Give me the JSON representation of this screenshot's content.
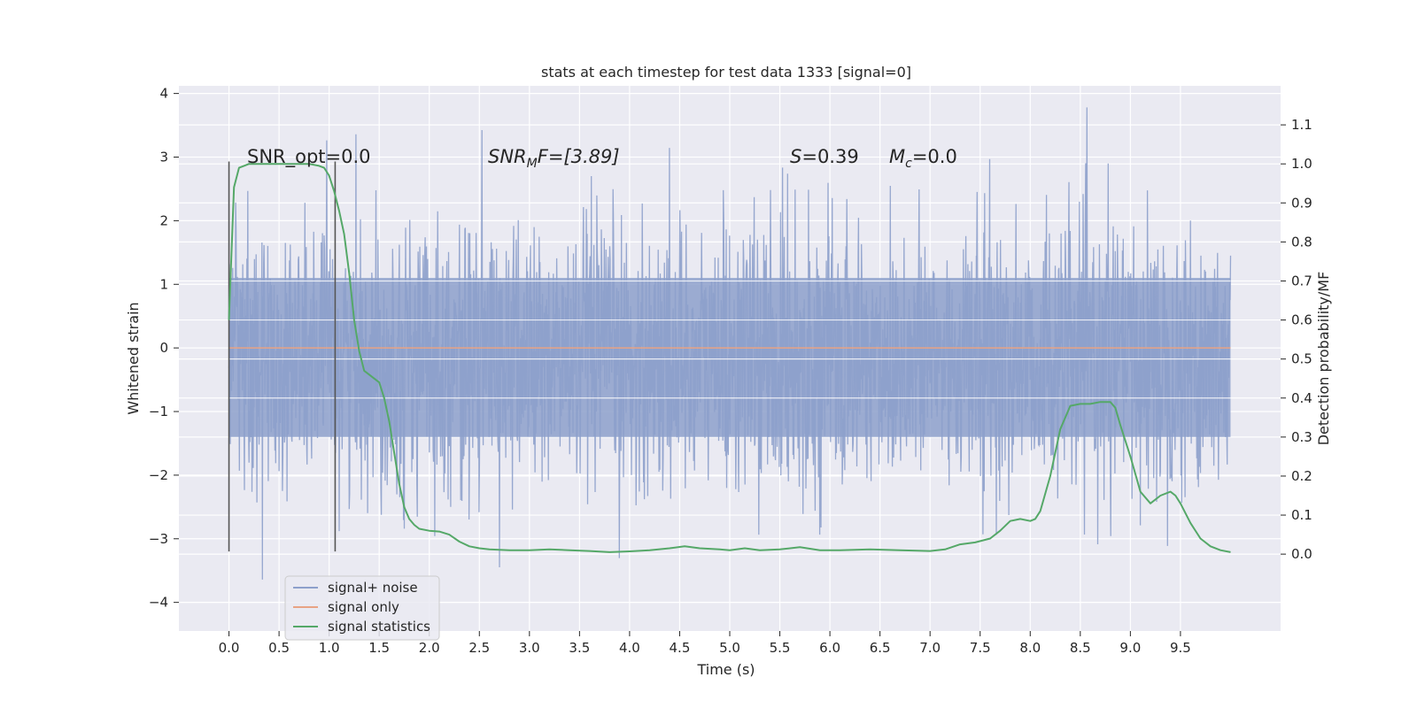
{
  "chart_data": {
    "type": "line",
    "title": "stats at each timestep for test data 1333 [signal=0]",
    "xlabel": "Time (s)",
    "ylabel": "Whitened strain",
    "y2label": "Detection probability/MF",
    "xlim": [
      -0.5,
      10.5
    ],
    "ylim": [
      -4.45,
      4.12
    ],
    "y2lim": [
      -0.197,
      1.2
    ],
    "xticks": [
      0.0,
      0.5,
      1.0,
      1.5,
      2.0,
      2.5,
      3.0,
      3.5,
      4.0,
      4.5,
      5.0,
      5.5,
      6.0,
      6.5,
      7.0,
      7.5,
      8.0,
      8.5,
      9.0,
      9.5
    ],
    "xtick_labels": [
      "0.0",
      "0.5",
      "1.0",
      "1.5",
      "2.0",
      "2.5",
      "3.0",
      "3.5",
      "4.0",
      "4.5",
      "5.0",
      "5.5",
      "6.0",
      "6.5",
      "7.0",
      "7.5",
      "8.0",
      "8.5",
      "9.0",
      "9.5"
    ],
    "yticks": [
      -4,
      -3,
      -2,
      -1,
      0,
      1,
      2,
      3,
      4
    ],
    "ytick_labels": [
      "−4",
      "−3",
      "−2",
      "−1",
      "0",
      "1",
      "2",
      "3",
      "4"
    ],
    "y2ticks": [
      0.0,
      0.1,
      0.2,
      0.3,
      0.4,
      0.5,
      0.6,
      0.7,
      0.8,
      0.9,
      1.0,
      1.1
    ],
    "y2tick_labels": [
      "0.0",
      "0.1",
      "0.2",
      "0.3",
      "0.4",
      "0.5",
      "0.6",
      "0.7",
      "0.8",
      "0.9",
      "1.0",
      "1.1"
    ],
    "grid": true,
    "legend_position": "lower-left",
    "annotations": {
      "snr_opt": "SNR_opt=0.0",
      "snr_mf_main": "SNR",
      "snr_mf_sub": "M",
      "snr_mf_rest": "F=[3.89]",
      "s_main": "S",
      "s_rest": "=0.39",
      "mc_main": "M",
      "mc_sub": "c",
      "mc_rest": "=0.0"
    },
    "vertical_markers": [
      {
        "x": 0.0,
        "y_range": [
          -3.2,
          2.93
        ]
      },
      {
        "x": 1.06,
        "y_range": [
          -3.2,
          2.93
        ]
      }
    ],
    "series": [
      {
        "name": "signal+ noise",
        "axis": "left",
        "color": "#8da0cb",
        "x_range": [
          0.0,
          10.0
        ],
        "y_range": [
          -4.05,
          3.78
        ],
        "typical_band": [
          -1.4,
          1.1
        ]
      },
      {
        "name": "signal only",
        "axis": "left",
        "color": "#e8a384",
        "x": [
          0.0,
          10.0
        ],
        "y": [
          0.0,
          0.0
        ]
      },
      {
        "name": "signal statistics",
        "axis": "right",
        "color": "#55a868",
        "x": [
          0.0,
          0.05,
          0.1,
          0.15,
          0.2,
          0.3,
          0.4,
          0.5,
          0.6,
          0.7,
          0.8,
          0.9,
          0.95,
          1.0,
          1.05,
          1.1,
          1.15,
          1.2,
          1.25,
          1.3,
          1.35,
          1.4,
          1.45,
          1.5,
          1.55,
          1.6,
          1.65,
          1.7,
          1.75,
          1.8,
          1.85,
          1.9,
          2.0,
          2.1,
          2.2,
          2.3,
          2.4,
          2.5,
          2.6,
          2.8,
          3.0,
          3.2,
          3.4,
          3.6,
          3.8,
          4.0,
          4.2,
          4.4,
          4.55,
          4.7,
          4.9,
          5.0,
          5.15,
          5.3,
          5.5,
          5.7,
          5.9,
          6.1,
          6.4,
          6.7,
          7.0,
          7.15,
          7.3,
          7.45,
          7.6,
          7.7,
          7.8,
          7.9,
          8.0,
          8.05,
          8.1,
          8.2,
          8.3,
          8.4,
          8.5,
          8.6,
          8.7,
          8.8,
          8.85,
          8.9,
          9.0,
          9.1,
          9.2,
          9.3,
          9.4,
          9.45,
          9.5,
          9.6,
          9.7,
          9.8,
          9.9,
          10.0
        ],
        "y": [
          0.6,
          0.94,
          0.99,
          0.995,
          1.0,
          1.0,
          1.0,
          1.0,
          1.0,
          1.0,
          1.0,
          0.995,
          0.99,
          0.97,
          0.93,
          0.88,
          0.82,
          0.72,
          0.6,
          0.52,
          0.47,
          0.46,
          0.45,
          0.44,
          0.4,
          0.34,
          0.26,
          0.18,
          0.12,
          0.09,
          0.075,
          0.065,
          0.06,
          0.058,
          0.05,
          0.032,
          0.02,
          0.015,
          0.012,
          0.01,
          0.01,
          0.012,
          0.01,
          0.008,
          0.005,
          0.007,
          0.01,
          0.015,
          0.02,
          0.015,
          0.012,
          0.01,
          0.015,
          0.01,
          0.012,
          0.018,
          0.01,
          0.01,
          0.012,
          0.01,
          0.008,
          0.012,
          0.025,
          0.03,
          0.04,
          0.06,
          0.085,
          0.09,
          0.085,
          0.09,
          0.11,
          0.2,
          0.32,
          0.38,
          0.385,
          0.385,
          0.39,
          0.39,
          0.375,
          0.33,
          0.25,
          0.16,
          0.13,
          0.15,
          0.16,
          0.15,
          0.13,
          0.08,
          0.04,
          0.02,
          0.01,
          0.005
        ]
      }
    ]
  }
}
